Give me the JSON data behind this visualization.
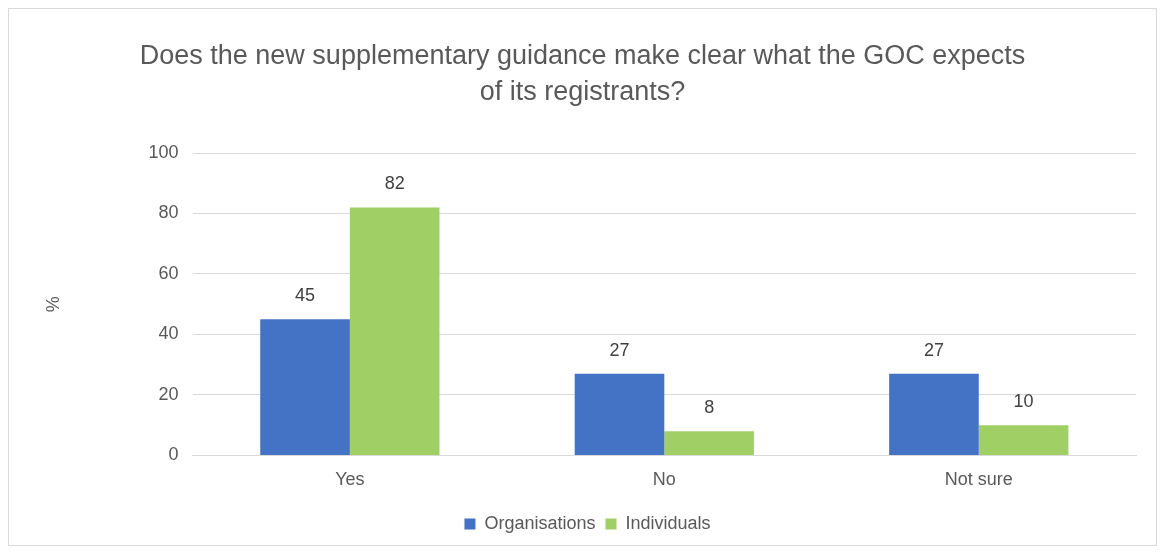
{
  "chart_data": {
    "type": "bar",
    "title": "Does the new supplementary guidance make clear what the GOC expects of its registrants?",
    "ylabel": "%",
    "categories": [
      "Yes",
      "No",
      "Not sure"
    ],
    "series": [
      {
        "name": "Organisations",
        "color": "#4472c4",
        "values": [
          45,
          27,
          27
        ]
      },
      {
        "name": "Individuals",
        "color": "#9fcf65",
        "values": [
          82,
          8,
          10
        ]
      }
    ],
    "ylim": [
      0,
      100
    ],
    "yticks": [
      0,
      20,
      40,
      60,
      80,
      100
    ],
    "grid": "y",
    "legend": "bottom",
    "data_labels": true
  }
}
